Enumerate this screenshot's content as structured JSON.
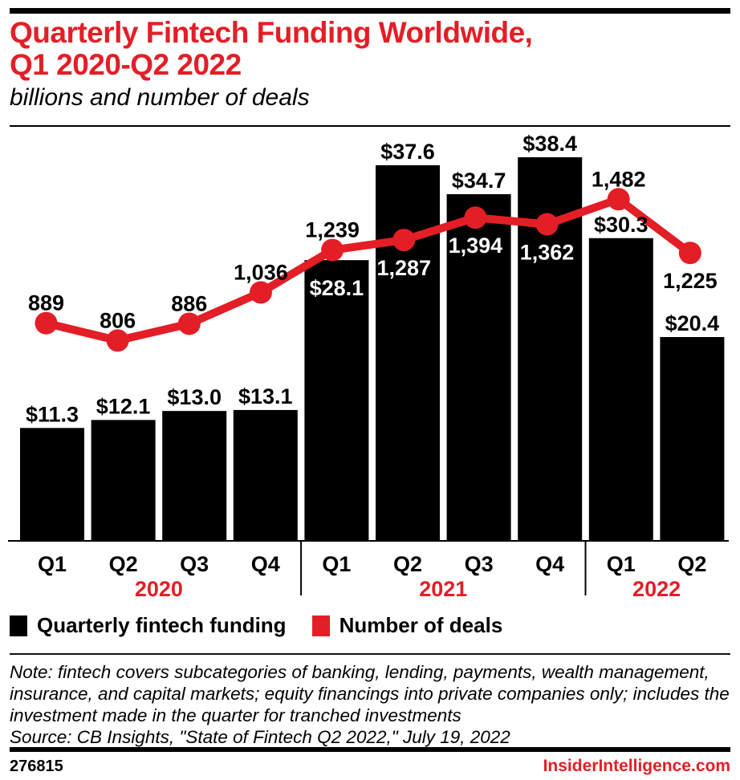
{
  "header": {
    "title_line1": "Quarterly Fintech Funding Worldwide,",
    "title_line2": "Q1 2020-Q2 2022",
    "subtitle": "billions and number of deals"
  },
  "chart_data": {
    "type": "bar+line",
    "quarters": [
      "Q1",
      "Q2",
      "Q3",
      "Q4",
      "Q1",
      "Q2",
      "Q3",
      "Q4",
      "Q1",
      "Q2"
    ],
    "year_groups": [
      {
        "label": "2020",
        "from": 0,
        "to": 3
      },
      {
        "label": "2021",
        "from": 4,
        "to": 7
      },
      {
        "label": "2022",
        "from": 8,
        "to": 9
      }
    ],
    "series": [
      {
        "name": "Quarterly fintech funding",
        "type": "bar",
        "unit": "US$ billions",
        "values": [
          11.3,
          12.1,
          13.0,
          13.1,
          28.1,
          37.6,
          34.7,
          38.4,
          30.3,
          20.4
        ],
        "labels": [
          "$11.3",
          "$12.1",
          "$13.0",
          "$13.1",
          "$28.1",
          "$37.6",
          "$34.7",
          "$38.4",
          "$30.3",
          "$20.4"
        ],
        "label_styles": [
          "above",
          "above",
          "above",
          "above",
          "inside",
          "above",
          "above",
          "above",
          "above",
          "above"
        ]
      },
      {
        "name": "Number of deals",
        "type": "line",
        "unit": "deals",
        "values": [
          889,
          806,
          886,
          1036,
          1239,
          1287,
          1394,
          1362,
          1482,
          1225
        ],
        "labels": [
          "889",
          "806",
          "886",
          "1,036",
          "1,239",
          "1,287",
          "1,394",
          "1,362",
          "1,482",
          "1,225"
        ],
        "label_styles": [
          "above",
          "above",
          "above",
          "above",
          "above",
          "inside",
          "inside",
          "inside",
          "above",
          "below"
        ]
      }
    ],
    "colors": {
      "bar": "#000000",
      "line": "#e41e26",
      "year_label": "#e41e26",
      "inside_label": "#ffffff",
      "outside_label": "#000000"
    },
    "ylim_bars": [
      0,
      41.3
    ],
    "grid": false,
    "legend_position": "bottom"
  },
  "legend": {
    "items": [
      {
        "label": "Quarterly fintech funding",
        "color": "#000000"
      },
      {
        "label": "Number of deals",
        "color": "#e41e26"
      }
    ]
  },
  "notes": {
    "note": "Note: fintech covers subcategories of banking, lending, payments, wealth management, insurance, and capital markets; equity financings into private companies only; includes the investment made in the quarter for tranched investments",
    "source": "Source: CB Insights, \"State of Fintech Q2 2022,\" July 19, 2022"
  },
  "footer": {
    "chart_id": "276815",
    "site": "InsiderIntelligence.com"
  }
}
